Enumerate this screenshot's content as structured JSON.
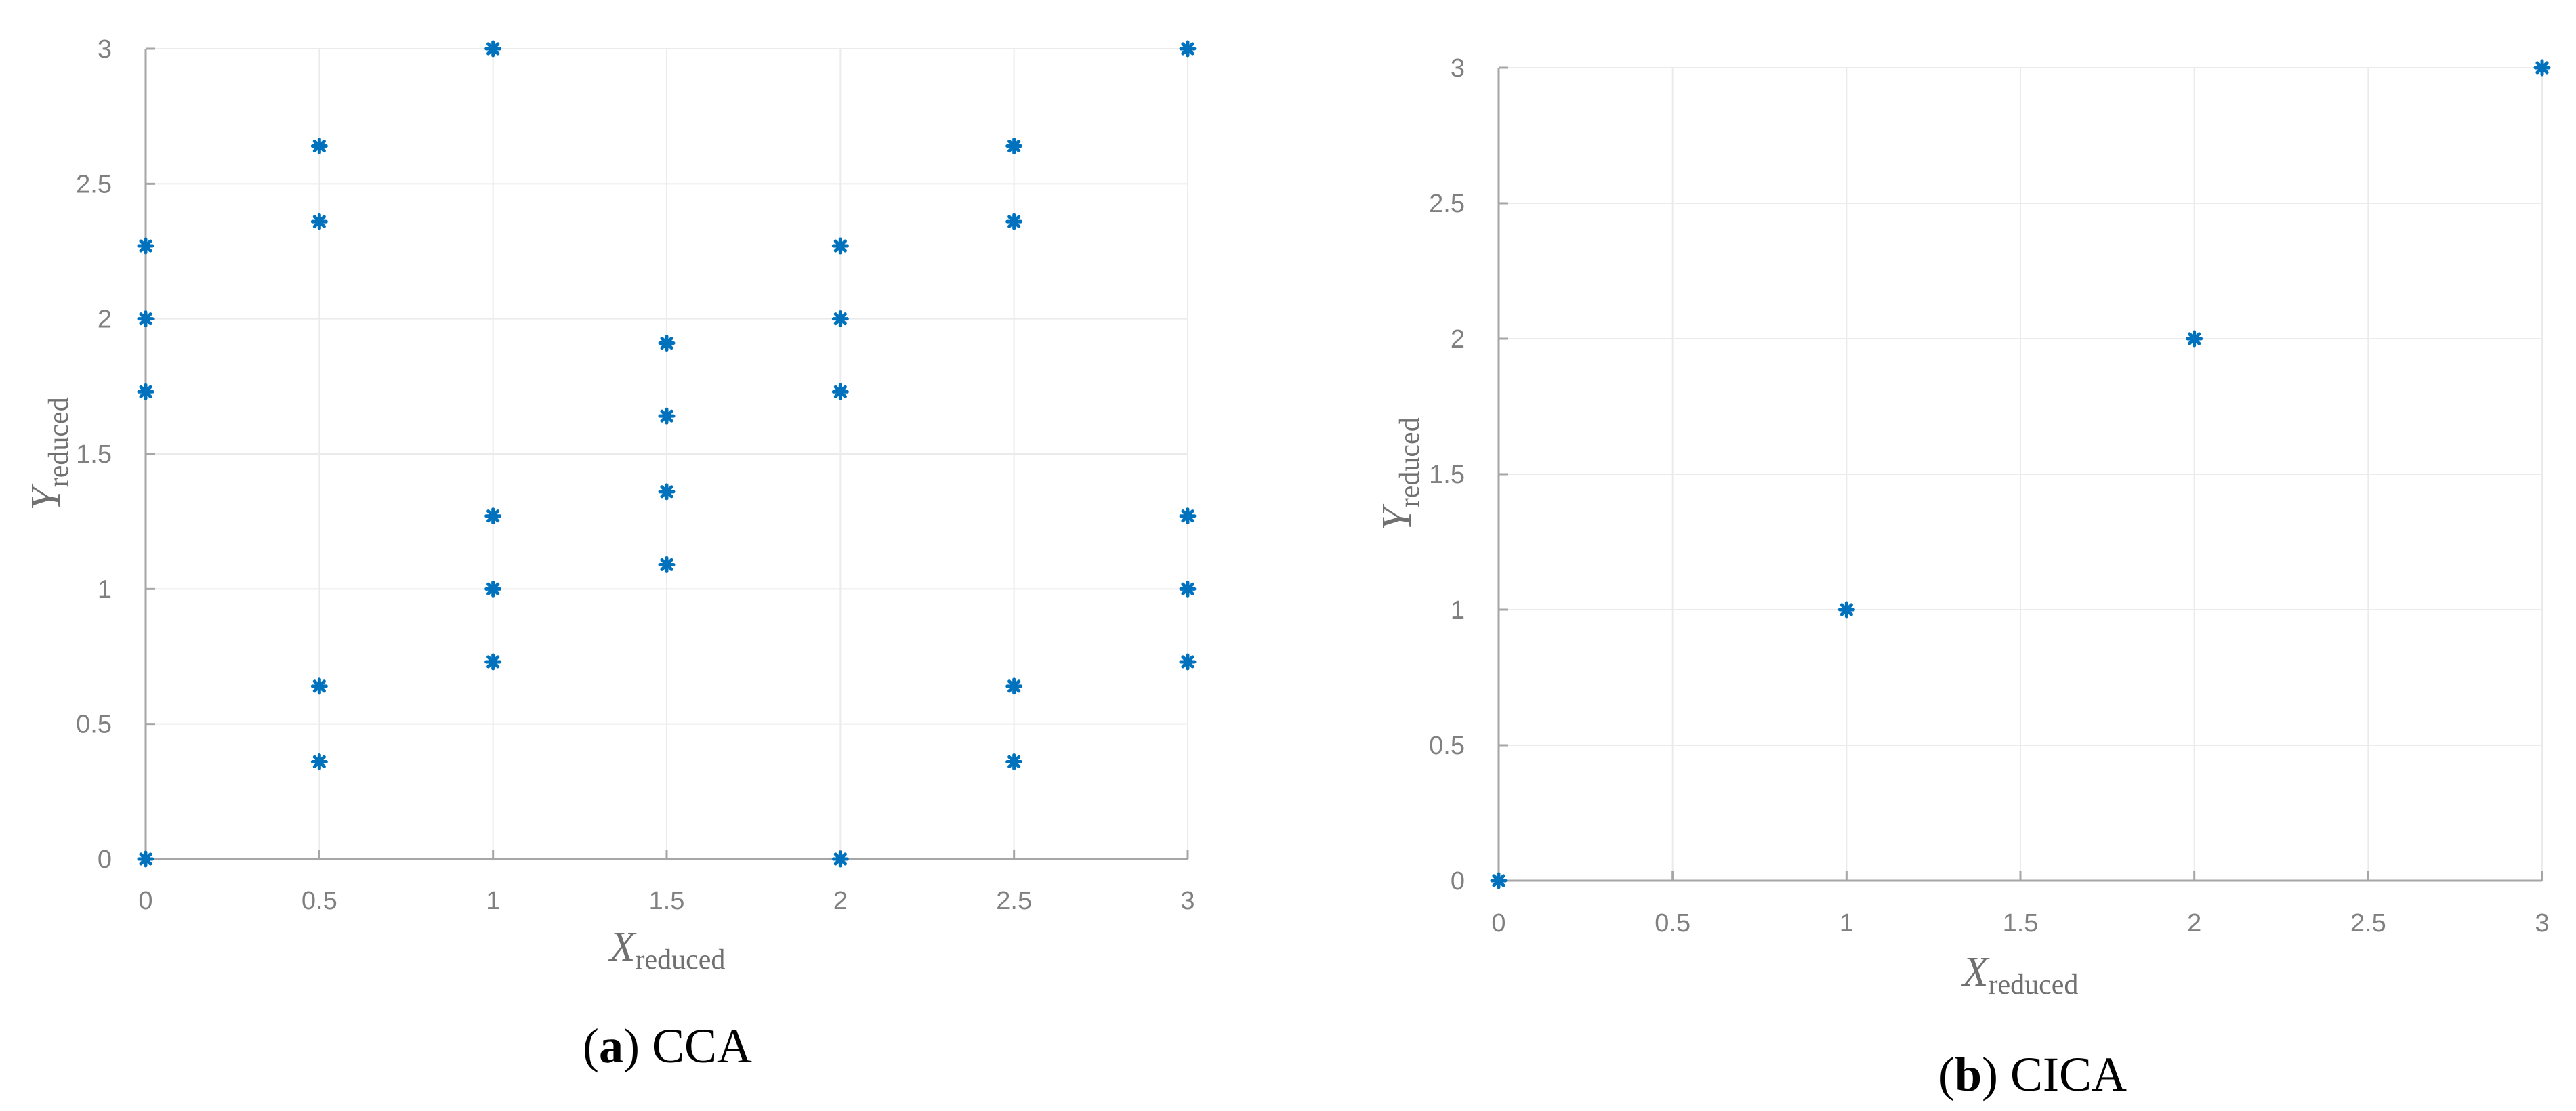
{
  "chart_data": [
    {
      "type": "scatter",
      "caption_letter": "a",
      "caption_text": "CCA",
      "xlabel_var": "X",
      "xlabel_sub": "reduced",
      "ylabel_var": "Y",
      "ylabel_sub": "reduced",
      "xlim": [
        0,
        3
      ],
      "ylim": [
        0,
        3
      ],
      "xticks": [
        "0",
        "0.5",
        "1",
        "1.5",
        "2",
        "2.5",
        "3"
      ],
      "yticks": [
        "0",
        "0.5",
        "1",
        "1.5",
        "2",
        "2.5",
        "3"
      ],
      "grid": true,
      "marker": "asterisk",
      "color": "#0072BD",
      "points": [
        [
          0,
          0
        ],
        [
          0,
          1.73
        ],
        [
          0,
          2.0
        ],
        [
          0,
          2.27
        ],
        [
          0.5,
          0.36
        ],
        [
          0.5,
          0.64
        ],
        [
          0.5,
          2.36
        ],
        [
          0.5,
          2.64
        ],
        [
          1,
          0.73
        ],
        [
          1,
          1.0
        ],
        [
          1,
          1.27
        ],
        [
          1,
          3.0
        ],
        [
          1.5,
          1.09
        ],
        [
          1.5,
          1.36
        ],
        [
          1.5,
          1.64
        ],
        [
          1.5,
          1.91
        ],
        [
          2,
          0
        ],
        [
          2,
          1.73
        ],
        [
          2,
          2.0
        ],
        [
          2,
          2.27
        ],
        [
          2.5,
          0.36
        ],
        [
          2.5,
          0.64
        ],
        [
          2.5,
          2.36
        ],
        [
          2.5,
          2.64
        ],
        [
          3,
          0.73
        ],
        [
          3,
          1.0
        ],
        [
          3,
          1.27
        ],
        [
          3,
          3.0
        ]
      ]
    },
    {
      "type": "scatter",
      "caption_letter": "b",
      "caption_text": "CICA",
      "xlabel_var": "X",
      "xlabel_sub": "reduced",
      "ylabel_var": "Y",
      "ylabel_sub": "reduced",
      "xlim": [
        0,
        3
      ],
      "ylim": [
        0,
        3
      ],
      "xticks": [
        "0",
        "0.5",
        "1",
        "1.5",
        "2",
        "2.5",
        "3"
      ],
      "yticks": [
        "0",
        "0.5",
        "1",
        "1.5",
        "2",
        "2.5",
        "3"
      ],
      "grid": true,
      "marker": "asterisk",
      "color": "#0072BD",
      "points": [
        [
          0,
          0
        ],
        [
          1,
          1
        ],
        [
          2,
          2
        ],
        [
          3,
          3
        ]
      ]
    }
  ]
}
